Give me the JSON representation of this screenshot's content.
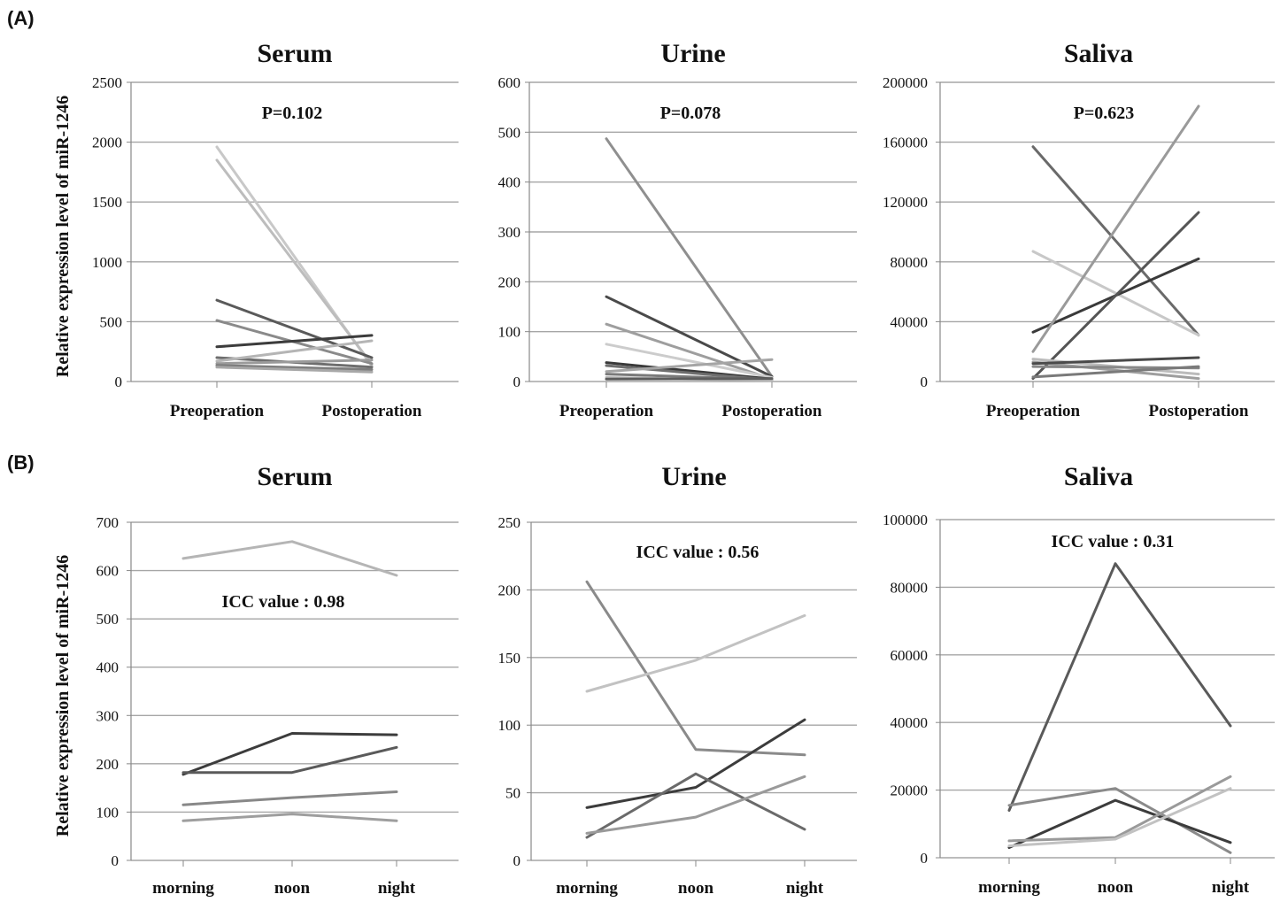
{
  "panel_labels": {
    "a": "(A)",
    "b": "(B)"
  },
  "chart_data": [
    {
      "type": "line",
      "panel": "A",
      "title": "Serum",
      "annotation": "P=0.102",
      "ylabel": "Relative expression level of miR-1246",
      "categories": [
        "Preoperation",
        "Postoperation"
      ],
      "ylim": [
        0,
        2500
      ],
      "yticks": [
        0,
        500,
        1000,
        1500,
        2000,
        2500
      ],
      "series": [
        {
          "values": [
            1960,
            130
          ],
          "color": "#c8c8c8"
        },
        {
          "values": [
            1850,
            145
          ],
          "color": "#bdbdbd"
        },
        {
          "values": [
            680,
            200
          ],
          "color": "#5a5a5a"
        },
        {
          "values": [
            510,
            150
          ],
          "color": "#8a8a8a"
        },
        {
          "values": [
            290,
            385
          ],
          "color": "#3c3c3c"
        },
        {
          "values": [
            200,
            120
          ],
          "color": "#6e6e6e"
        },
        {
          "values": [
            170,
            340
          ],
          "color": "#b5b5b5"
        },
        {
          "values": [
            150,
            180
          ],
          "color": "#9a9a9a"
        },
        {
          "values": [
            135,
            100
          ],
          "color": "#7d7d7d"
        },
        {
          "values": [
            120,
            80
          ],
          "color": "#a8a8a8"
        }
      ]
    },
    {
      "type": "line",
      "panel": "A",
      "title": "Urine",
      "annotation": "P=0.078",
      "categories": [
        "Preoperation",
        "Postoperation"
      ],
      "ylim": [
        0,
        600
      ],
      "yticks": [
        0,
        100,
        200,
        300,
        400,
        500,
        600
      ],
      "series": [
        {
          "values": [
            487,
            10
          ],
          "color": "#8f8f8f"
        },
        {
          "values": [
            170,
            10
          ],
          "color": "#4a4a4a"
        },
        {
          "values": [
            115,
            5
          ],
          "color": "#9e9e9e"
        },
        {
          "values": [
            75,
            8
          ],
          "color": "#cccccc"
        },
        {
          "values": [
            38,
            5
          ],
          "color": "#3a3a3a"
        },
        {
          "values": [
            32,
            3
          ],
          "color": "#6e6e6e"
        },
        {
          "values": [
            20,
            44
          ],
          "color": "#a5a5a5"
        },
        {
          "values": [
            15,
            4
          ],
          "color": "#7a7a7a"
        },
        {
          "values": [
            8,
            2
          ],
          "color": "#b8b8b8"
        },
        {
          "values": [
            5,
            6
          ],
          "color": "#5c5c5c"
        }
      ]
    },
    {
      "type": "line",
      "panel": "A",
      "title": "Saliva",
      "annotation": "P=0.623",
      "categories": [
        "Preoperation",
        "Postoperation"
      ],
      "ylim": [
        0,
        200000
      ],
      "yticks": [
        0,
        40000,
        80000,
        120000,
        160000,
        200000
      ],
      "series": [
        {
          "values": [
            157000,
            31000
          ],
          "color": "#6a6a6a"
        },
        {
          "values": [
            87000,
            31000
          ],
          "color": "#c8c8c8"
        },
        {
          "values": [
            33000,
            82000
          ],
          "color": "#3a3a3a"
        },
        {
          "values": [
            20000,
            184000
          ],
          "color": "#9a9a9a"
        },
        {
          "values": [
            2000,
            113000
          ],
          "color": "#555555"
        },
        {
          "values": [
            15000,
            5000
          ],
          "color": "#bbbbbb"
        },
        {
          "values": [
            13000,
            2000
          ],
          "color": "#9e9e9e"
        },
        {
          "values": [
            12000,
            16000
          ],
          "color": "#4a4a4a"
        },
        {
          "values": [
            10000,
            9000
          ],
          "color": "#888888"
        },
        {
          "values": [
            3000,
            10000
          ],
          "color": "#7a7a7a"
        }
      ]
    },
    {
      "type": "line",
      "panel": "B",
      "title": "Serum",
      "annotation": "ICC value : 0.98",
      "ylabel": "Relative expression level of miR-1246",
      "categories": [
        "morning",
        "noon",
        "night"
      ],
      "ylim": [
        0,
        700
      ],
      "yticks": [
        0,
        100,
        200,
        300,
        400,
        500,
        600,
        700
      ],
      "series": [
        {
          "values": [
            625,
            660,
            590
          ],
          "color": "#b5b5b5"
        },
        {
          "values": [
            178,
            263,
            260
          ],
          "color": "#3c3c3c"
        },
        {
          "values": [
            182,
            182,
            234
          ],
          "color": "#5a5a5a"
        },
        {
          "values": [
            115,
            130,
            142
          ],
          "color": "#888888"
        },
        {
          "values": [
            82,
            96,
            82
          ],
          "color": "#9e9e9e"
        }
      ]
    },
    {
      "type": "line",
      "panel": "B",
      "title": "Urine",
      "annotation": "ICC value : 0.56",
      "categories": [
        "morning",
        "noon",
        "night"
      ],
      "ylim": [
        0,
        250
      ],
      "yticks": [
        0,
        50,
        100,
        150,
        200,
        250
      ],
      "series": [
        {
          "values": [
            206,
            82,
            78
          ],
          "color": "#8a8a8a"
        },
        {
          "values": [
            125,
            148,
            181
          ],
          "color": "#c2c2c2"
        },
        {
          "values": [
            39,
            54,
            104
          ],
          "color": "#3c3c3c"
        },
        {
          "values": [
            17,
            64,
            23
          ],
          "color": "#6a6a6a"
        },
        {
          "values": [
            20,
            32,
            62
          ],
          "color": "#9a9a9a"
        }
      ]
    },
    {
      "type": "line",
      "panel": "B",
      "title": "Saliva",
      "annotation": "ICC value : 0.31",
      "categories": [
        "morning",
        "noon",
        "night"
      ],
      "ylim": [
        0,
        100000
      ],
      "yticks": [
        0,
        20000,
        40000,
        60000,
        80000,
        100000
      ],
      "series": [
        {
          "values": [
            14000,
            87000,
            39000
          ],
          "color": "#5a5a5a"
        },
        {
          "values": [
            15500,
            20500,
            1500
          ],
          "color": "#8a8a8a"
        },
        {
          "values": [
            3000,
            17000,
            4500
          ],
          "color": "#3c3c3c"
        },
        {
          "values": [
            5000,
            6000,
            24000
          ],
          "color": "#9a9a9a"
        },
        {
          "values": [
            3500,
            5500,
            20500
          ],
          "color": "#c2c2c2"
        }
      ]
    }
  ]
}
